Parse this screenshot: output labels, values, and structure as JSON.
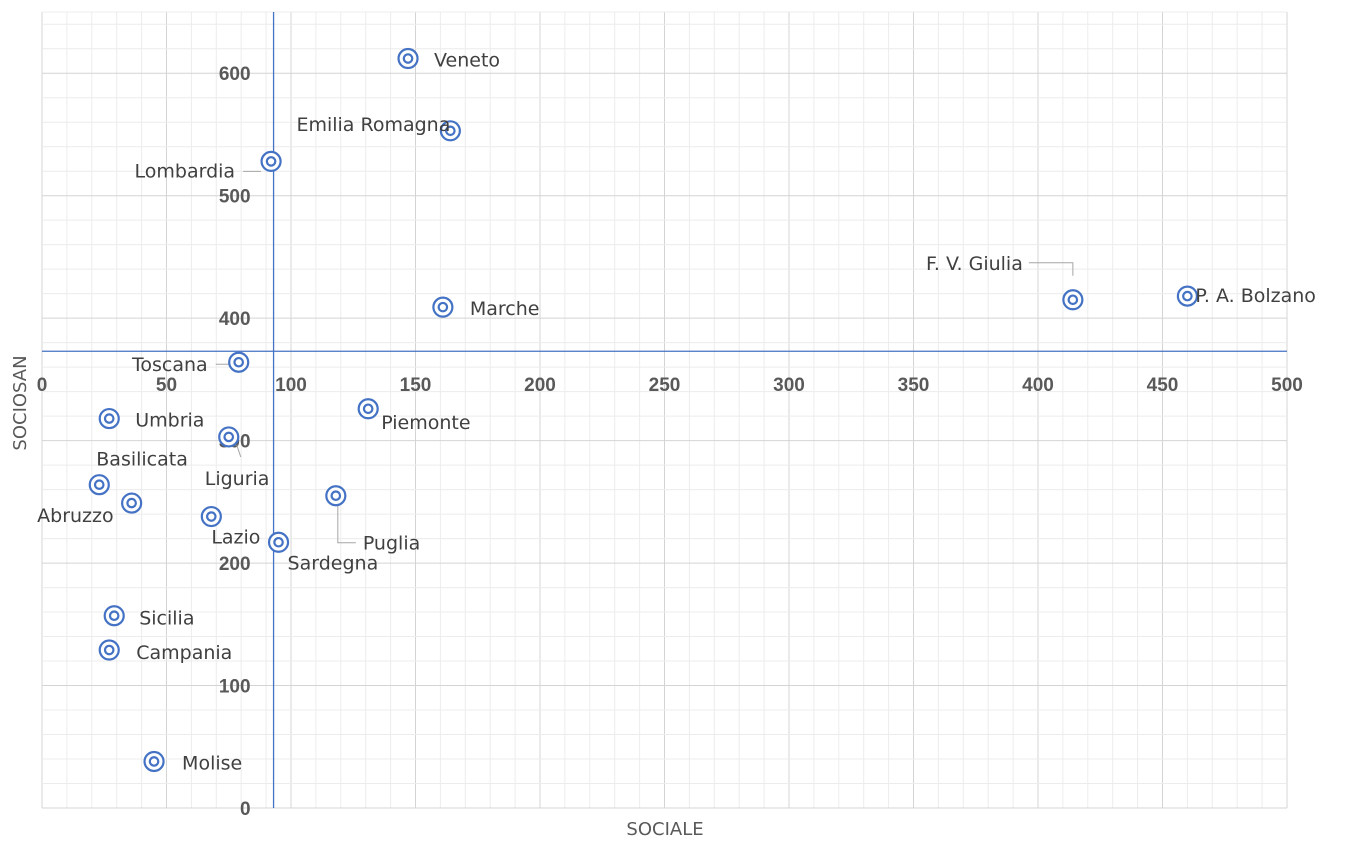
{
  "chart_data": {
    "type": "scatter",
    "xlabel": "SOCIALE",
    "ylabel": "SOCIOSAN",
    "xlim": [
      0,
      500
    ],
    "ylim": [
      0,
      650
    ],
    "x_ticks": [
      0,
      50,
      100,
      150,
      200,
      250,
      300,
      350,
      400,
      450,
      500
    ],
    "y_ticks": [
      0,
      100,
      200,
      300,
      400,
      500,
      600
    ],
    "grid": true,
    "crosshair": {
      "x": 93,
      "y": 373,
      "color": "#4472c4"
    },
    "marker_color": "#4472c4",
    "points": [
      {
        "name": "Veneto",
        "x": 147,
        "y": 612
      },
      {
        "name": "Emilia Romagna",
        "x": 164,
        "y": 553
      },
      {
        "name": "Lombardia",
        "x": 92,
        "y": 528
      },
      {
        "name": "F. V. Giulia",
        "x": 414,
        "y": 415
      },
      {
        "name": "P. A. Bolzano",
        "x": 460,
        "y": 418
      },
      {
        "name": "Marche",
        "x": 161,
        "y": 409
      },
      {
        "name": "Toscana",
        "x": 79,
        "y": 364
      },
      {
        "name": "Piemonte",
        "x": 131,
        "y": 326
      },
      {
        "name": "Umbria",
        "x": 27,
        "y": 318
      },
      {
        "name": "Liguria",
        "x": 75,
        "y": 303
      },
      {
        "name": "Basilicata",
        "x": 23,
        "y": 264
      },
      {
        "name": "Abruzzo",
        "x": 36,
        "y": 249
      },
      {
        "name": "Puglia",
        "x": 118,
        "y": 255
      },
      {
        "name": "Lazio",
        "x": 68,
        "y": 238
      },
      {
        "name": "Sardegna",
        "x": 95,
        "y": 217
      },
      {
        "name": "Sicilia",
        "x": 29,
        "y": 157
      },
      {
        "name": "Campania",
        "x": 27,
        "y": 129
      },
      {
        "name": "Molise",
        "x": 45,
        "y": 38
      }
    ]
  }
}
